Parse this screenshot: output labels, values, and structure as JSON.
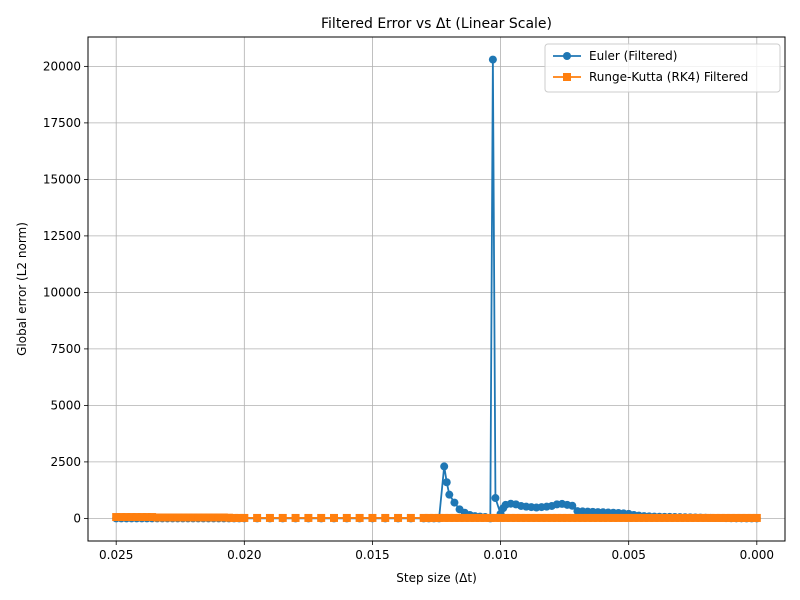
{
  "chart_data": {
    "type": "line",
    "title": "Filtered Error vs Δt (Linear Scale)",
    "xlabel": "Step size (Δt)",
    "ylabel": "Global error (L2 norm)",
    "x_inverted": true,
    "xlim": [
      0.0261,
      -0.0011
    ],
    "ylim": [
      -1000,
      21300
    ],
    "xticks": [
      0.025,
      0.02,
      0.015,
      0.01,
      0.005,
      0.0
    ],
    "xtick_labels": [
      "0.025",
      "0.020",
      "0.015",
      "0.010",
      "0.005",
      "0.000"
    ],
    "yticks": [
      0,
      2500,
      5000,
      7500,
      10000,
      12500,
      15000,
      17500,
      20000
    ],
    "ytick_labels": [
      "0",
      "2500",
      "5000",
      "7500",
      "10000",
      "12500",
      "15000",
      "17500",
      "20000"
    ],
    "grid": true,
    "legend_position": "top-right",
    "series": [
      {
        "name": "Euler (Filtered)",
        "color": "#1f77b4",
        "marker": "circle",
        "x": [
          0.025,
          0.0248,
          0.0246,
          0.0244,
          0.0242,
          0.024,
          0.0238,
          0.0236,
          0.0234,
          0.0232,
          0.023,
          0.0228,
          0.0226,
          0.0224,
          0.0222,
          0.022,
          0.0218,
          0.0216,
          0.0214,
          0.0212,
          0.021,
          0.0208,
          0.0206,
          0.0204,
          0.0202,
          0.02,
          0.0195,
          0.019,
          0.0185,
          0.018,
          0.0175,
          0.017,
          0.0165,
          0.016,
          0.0155,
          0.015,
          0.0145,
          0.014,
          0.0135,
          0.013,
          0.0128,
          0.0126,
          0.0124,
          0.0122,
          0.0121,
          0.012,
          0.0118,
          0.0116,
          0.0114,
          0.0112,
          0.011,
          0.0108,
          0.0106,
          0.0104,
          0.0103,
          0.0102,
          0.01,
          0.0099,
          0.0098,
          0.0096,
          0.0094,
          0.0092,
          0.009,
          0.0088,
          0.0086,
          0.0084,
          0.0082,
          0.008,
          0.0078,
          0.0076,
          0.0074,
          0.0072,
          0.007,
          0.0068,
          0.0066,
          0.0064,
          0.0062,
          0.006,
          0.0058,
          0.0056,
          0.0054,
          0.0052,
          0.005,
          0.0048,
          0.0046,
          0.0044,
          0.0042,
          0.004,
          0.0038,
          0.0036,
          0.0034,
          0.0032,
          0.003,
          0.0028,
          0.0026,
          0.0024,
          0.0022,
          0.002,
          0.0018,
          0.0016,
          0.0014,
          0.0012,
          0.001,
          0.0008,
          0.0006,
          0.0004,
          0.0002,
          0.0
        ],
        "y": [
          0,
          0,
          0,
          0,
          0,
          0,
          0,
          0,
          0,
          0,
          0,
          0,
          0,
          0,
          0,
          0,
          0,
          0,
          0,
          0,
          0,
          0,
          0,
          0,
          0,
          0,
          0,
          0,
          0,
          0,
          0,
          0,
          0,
          0,
          0,
          0,
          0,
          0,
          0,
          0,
          0,
          0,
          0,
          2300,
          1600,
          1050,
          700,
          400,
          250,
          150,
          100,
          80,
          60,
          0,
          20300,
          900,
          200,
          450,
          600,
          650,
          620,
          550,
          520,
          500,
          480,
          500,
          520,
          550,
          620,
          640,
          600,
          560,
          320,
          310,
          300,
          290,
          280,
          270,
          260,
          250,
          240,
          220,
          200,
          150,
          120,
          100,
          90,
          80,
          75,
          70,
          65,
          60,
          55,
          50,
          45,
          40,
          35,
          30,
          25,
          20,
          15,
          10,
          5,
          3,
          2,
          1,
          1,
          0
        ]
      },
      {
        "name": "Runge-Kutta (RK4) Filtered",
        "color": "#ff7f0e",
        "marker": "square",
        "x": [
          0.025,
          0.0248,
          0.0246,
          0.0244,
          0.0242,
          0.024,
          0.0238,
          0.0236,
          0.0234,
          0.0232,
          0.023,
          0.0228,
          0.0226,
          0.0224,
          0.0222,
          0.022,
          0.0218,
          0.0216,
          0.0214,
          0.0212,
          0.021,
          0.0208,
          0.0206,
          0.0204,
          0.0202,
          0.02,
          0.0195,
          0.019,
          0.0185,
          0.018,
          0.0175,
          0.017,
          0.0165,
          0.016,
          0.0155,
          0.015,
          0.0145,
          0.014,
          0.0135,
          0.013,
          0.0128,
          0.0126,
          0.0124,
          0.0122,
          0.012,
          0.0118,
          0.0116,
          0.0114,
          0.0112,
          0.011,
          0.0108,
          0.0106,
          0.0104,
          0.0102,
          0.01,
          0.0098,
          0.0096,
          0.0094,
          0.0092,
          0.009,
          0.0088,
          0.0086,
          0.0084,
          0.0082,
          0.008,
          0.0078,
          0.0076,
          0.0074,
          0.0072,
          0.007,
          0.0068,
          0.0066,
          0.0064,
          0.0062,
          0.006,
          0.0058,
          0.0056,
          0.0054,
          0.0052,
          0.005,
          0.0048,
          0.0046,
          0.0044,
          0.0042,
          0.004,
          0.0038,
          0.0036,
          0.0034,
          0.0032,
          0.003,
          0.0028,
          0.0026,
          0.0024,
          0.0022,
          0.002,
          0.0018,
          0.0016,
          0.0014,
          0.0012,
          0.001,
          0.0008,
          0.0006,
          0.0004,
          0.0002,
          0.0
        ],
        "y": [
          60,
          60,
          60,
          60,
          60,
          60,
          60,
          60,
          40,
          40,
          40,
          40,
          40,
          40,
          40,
          40,
          40,
          40,
          40,
          40,
          40,
          40,
          30,
          20,
          20,
          20,
          20,
          20,
          20,
          20,
          20,
          20,
          20,
          20,
          20,
          20,
          20,
          20,
          20,
          20,
          20,
          20,
          20,
          20,
          20,
          20,
          20,
          20,
          20,
          20,
          20,
          20,
          20,
          20,
          20,
          20,
          20,
          20,
          20,
          20,
          20,
          20,
          20,
          20,
          20,
          20,
          20,
          20,
          20,
          20,
          20,
          20,
          20,
          20,
          20,
          20,
          20,
          20,
          20,
          20,
          20,
          20,
          20,
          20,
          20,
          20,
          20,
          20,
          20,
          20,
          20,
          20,
          20,
          20,
          20,
          20,
          20,
          20,
          20,
          20,
          20,
          20,
          20,
          20,
          20
        ]
      }
    ]
  }
}
